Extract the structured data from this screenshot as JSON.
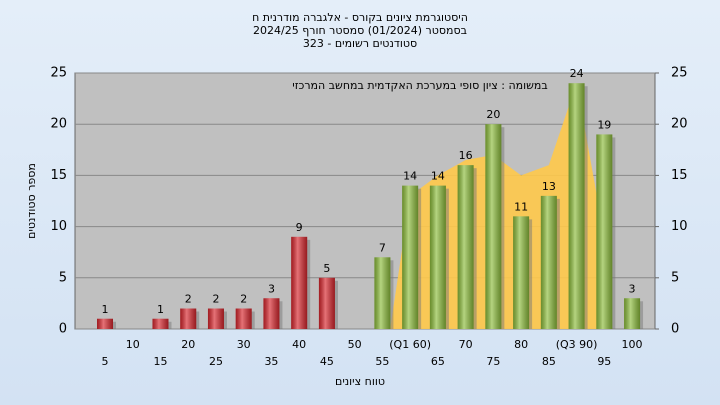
{
  "chart_data": {
    "type": "bar",
    "title": [
      "היסטוגרמת ציונים בקורס - אלגברה מודרנית ח",
      "בסמסטר  (01/2024)  סמסטר חורף  2024/25",
      "סטודנטים רשומים - 323"
    ],
    "annotation": "במשומה : ציון סופי במערכת האקדמית במחשב המרכזי",
    "y_label": "מספר סטודנטים",
    "x_label": "טווח ציונים",
    "categories": [
      "5",
      "10",
      "15",
      "20",
      "25",
      "30",
      "35",
      "40",
      "45",
      "50",
      "55",
      "(Q1 60)",
      "65",
      "70",
      "75",
      "80",
      "85",
      "(Q3 90)",
      "95",
      "100"
    ],
    "values": [
      1,
      0,
      1,
      2,
      2,
      2,
      3,
      9,
      5,
      0,
      7,
      14,
      14,
      16,
      20,
      11,
      13,
      24,
      19,
      3
    ],
    "value_labels": [
      "1",
      null,
      "1",
      "2",
      "2",
      "2",
      "3",
      "9",
      "5",
      null,
      "7",
      "14",
      "14",
      "16",
      "20",
      "11",
      "13",
      "24",
      "19",
      "3"
    ],
    "colors": [
      "#d8262d",
      "#d8262d",
      "#d8262d",
      "#d8262d",
      "#d8262d",
      "#d8262d",
      "#d8262d",
      "#d8262d",
      "#d8262d",
      "#d8262d",
      "#8dbd3c",
      "#8dbd3c",
      "#8dbd3c",
      "#8dbd3c",
      "#8dbd3c",
      "#8dbd3c",
      "#8dbd3c",
      "#8dbd3c",
      "#8dbd3c",
      "#8dbd3c"
    ],
    "band": {
      "color": "#ffc94a",
      "values": [
        null,
        null,
        null,
        null,
        null,
        null,
        null,
        null,
        null,
        null,
        null,
        13,
        15,
        16.5,
        17,
        15,
        16,
        24,
        9,
        null
      ]
    },
    "ylim": [
      0,
      25
    ],
    "yticks": [
      0,
      5,
      10,
      15,
      20,
      25
    ],
    "y2lim": [
      0,
      25
    ],
    "y2ticks": [
      0,
      5,
      10,
      15,
      20,
      25
    ],
    "grid": true
  }
}
